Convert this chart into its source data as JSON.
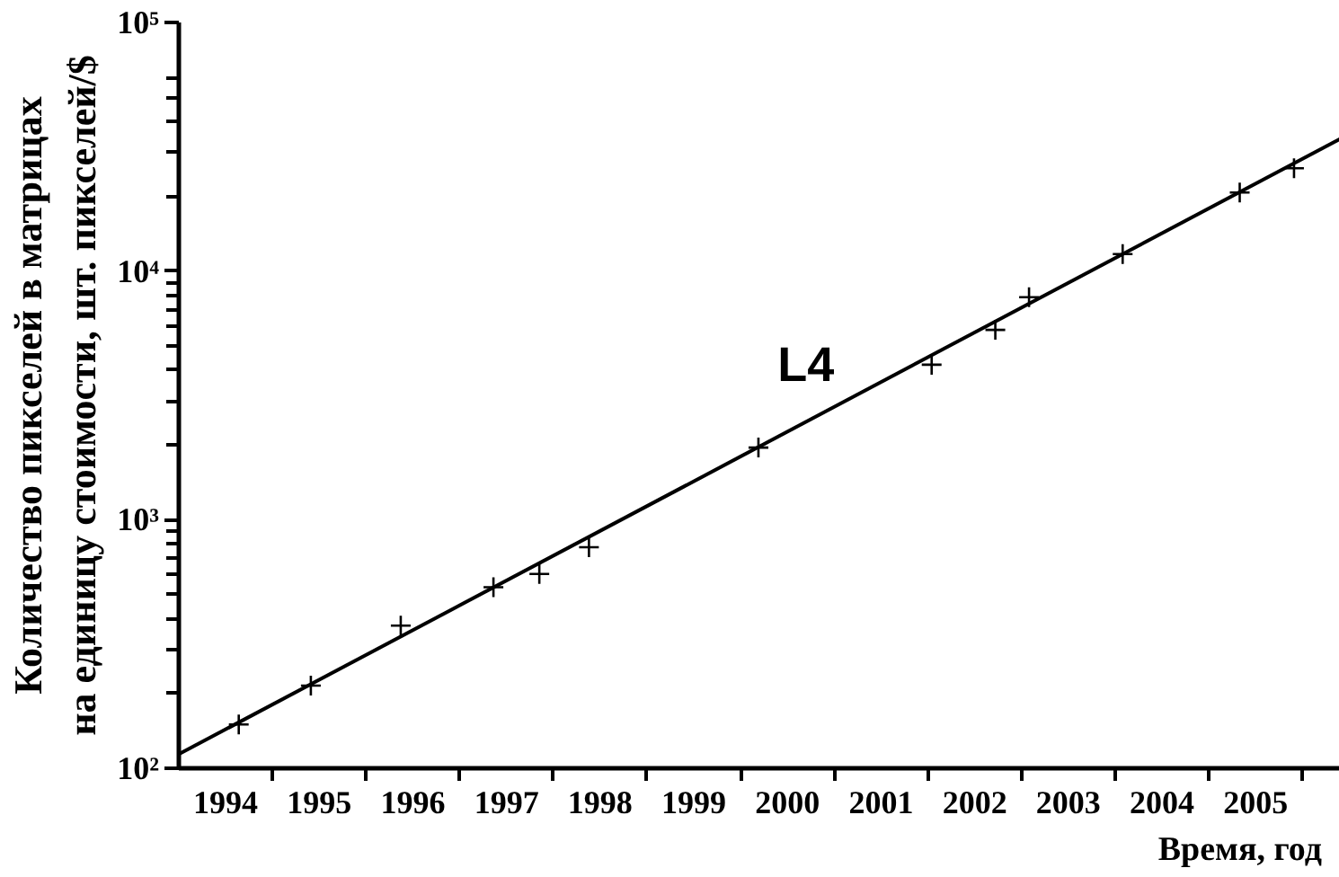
{
  "chart_data": {
    "type": "scatter",
    "ylabel": "Количество пикселей в матрицах\nна единицу стоимости, шт. пикселей/$",
    "xlabel": "Время, год",
    "log": "y",
    "grid": false,
    "xlim": [
      1994,
      2006.4
    ],
    "ylim": [
      100,
      100000
    ],
    "xticks": [
      {
        "value": 1994.5,
        "label": "1994"
      },
      {
        "value": 1995.5,
        "label": "1995"
      },
      {
        "value": 1996.5,
        "label": "1996"
      },
      {
        "value": 1997.5,
        "label": "1997"
      },
      {
        "value": 1998.5,
        "label": "1998"
      },
      {
        "value": 1999.5,
        "label": "1999"
      },
      {
        "value": 2000.5,
        "label": "2000"
      },
      {
        "value": 2001.5,
        "label": "2001"
      },
      {
        "value": 2002.5,
        "label": "2002"
      },
      {
        "value": 2003.5,
        "label": "2003"
      },
      {
        "value": 2004.5,
        "label": "2004"
      },
      {
        "value": 2005.5,
        "label": "2005"
      },
      {
        "value": 1995,
        "label": null
      },
      {
        "value": 1996,
        "label": null
      },
      {
        "value": 1997,
        "label": null
      },
      {
        "value": 1998,
        "label": null
      },
      {
        "value": 1999,
        "label": null
      },
      {
        "value": 2000,
        "label": null
      },
      {
        "value": 2001,
        "label": null
      },
      {
        "value": 2002,
        "label": null
      },
      {
        "value": 2003,
        "label": null
      },
      {
        "value": 2004,
        "label": null
      },
      {
        "value": 2005,
        "label": null
      },
      {
        "value": 2006,
        "label": null
      }
    ],
    "yticks": [
      {
        "value": 100,
        "label": "10²"
      },
      {
        "value": 1000,
        "label": "10³"
      },
      {
        "value": 10000,
        "label": "10⁴"
      },
      {
        "value": 100000,
        "label": "10⁵"
      },
      {
        "value": 200,
        "label": null
      },
      {
        "value": 300,
        "label": null
      },
      {
        "value": 400,
        "label": null
      },
      {
        "value": 500,
        "label": null
      },
      {
        "value": 600,
        "label": null
      },
      {
        "value": 700,
        "label": null
      },
      {
        "value": 800,
        "label": null
      },
      {
        "value": 900,
        "label": null
      },
      {
        "value": 2000,
        "label": null
      },
      {
        "value": 3000,
        "label": null
      },
      {
        "value": 4000,
        "label": null
      },
      {
        "value": 5000,
        "label": null
      },
      {
        "value": 6000,
        "label": null
      },
      {
        "value": 7000,
        "label": null
      },
      {
        "value": 8000,
        "label": null
      },
      {
        "value": 9000,
        "label": null
      },
      {
        "value": 20000,
        "label": null
      },
      {
        "value": 30000,
        "label": null
      },
      {
        "value": 40000,
        "label": null
      },
      {
        "value": 50000,
        "label": null
      },
      {
        "value": 60000,
        "label": null
      }
    ],
    "series": [
      {
        "type": "line",
        "name": "L4",
        "color": "#000000",
        "line_style": "solid",
        "x": [
          1994,
          2006.4
        ],
        "values": [
          114,
          34000
        ]
      },
      {
        "color": "#000000",
        "marker": "cross",
        "x": [
          1994.64,
          1995.41,
          1996.37,
          1997.36,
          1997.85,
          1998.38,
          2000.19,
          2002.04,
          2002.72,
          2003.08,
          2004.08,
          2005.33,
          2005.91
        ],
        "values": [
          150,
          215,
          375,
          535,
          605,
          775,
          1950,
          4200,
          5800,
          7850,
          11700,
          20700,
          25900
        ]
      }
    ]
  }
}
